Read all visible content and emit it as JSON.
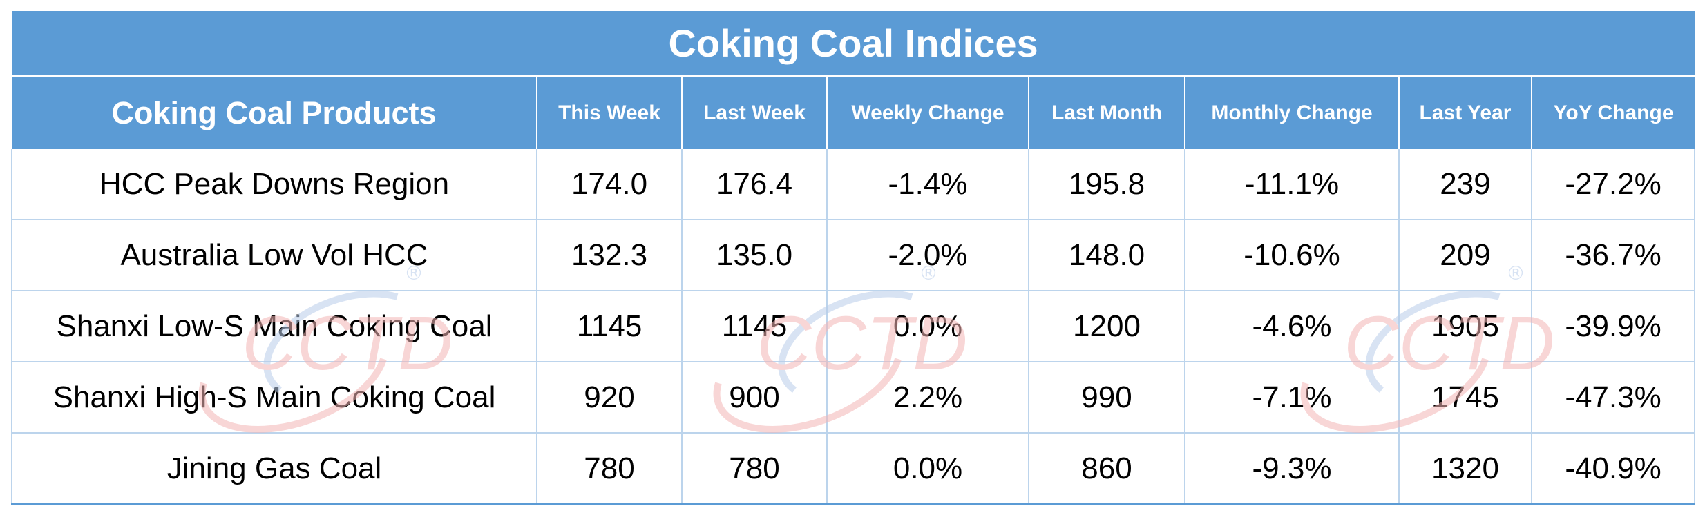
{
  "chart_data": {
    "type": "table",
    "title": "Coking Coal Indices",
    "columns": [
      "Coking Coal Products",
      "This Week",
      "Last Week",
      "Weekly Change",
      "Last Month",
      "Monthly Change",
      "Last Year",
      "YoY Change"
    ],
    "rows": [
      [
        "HCC Peak Downs Region",
        "174.0",
        "176.4",
        "-1.4%",
        "195.8",
        "-11.1%",
        "239",
        "-27.2%"
      ],
      [
        "Australia Low Vol HCC",
        "132.3",
        "135.0",
        "-2.0%",
        "148.0",
        "-10.6%",
        "209",
        "-36.7%"
      ],
      [
        "Shanxi Low-S Main Coking Coal",
        "1145",
        "1145",
        "0.0%",
        "1200",
        "-4.6%",
        "1905",
        "-39.9%"
      ],
      [
        "Shanxi High-S Main Coking Coal",
        "920",
        "900",
        "2.2%",
        "990",
        "-7.1%",
        "1745",
        "-47.3%"
      ],
      [
        "Jining Gas Coal",
        "780",
        "780",
        "0.0%",
        "860",
        "-9.3%",
        "1320",
        "-40.9%"
      ]
    ]
  },
  "watermark": {
    "text": "CCTD",
    "mark": "®"
  },
  "colors": {
    "header_bg": "#5b9bd5",
    "header_text": "#ffffff",
    "grid": "#bcd4ec",
    "watermark_red": "#f4b6b6",
    "watermark_blue": "#b9cdea"
  }
}
